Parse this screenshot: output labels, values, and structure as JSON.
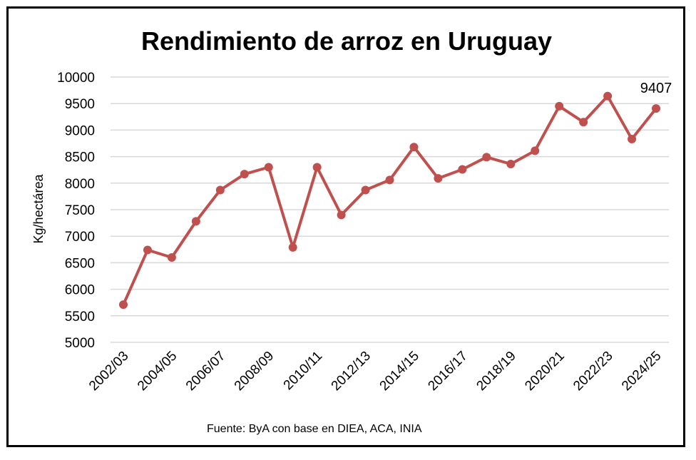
{
  "chart_data": {
    "type": "line",
    "title": "Rendimiento de arroz en Uruguay",
    "ylabel": "Kg/hectárea",
    "xlabel": "",
    "source": "Fuente: ByA con base en DIEA, ACA, INIA",
    "ylim": [
      5000,
      10000
    ],
    "yticks": [
      "5000",
      "5500",
      "6000",
      "6500",
      "7000",
      "7500",
      "8000",
      "8500",
      "9000",
      "9500",
      "10000"
    ],
    "x": [
      "2002/03",
      "2003/04",
      "2004/05",
      "2005/06",
      "2006/07",
      "2007/08",
      "2008/09",
      "2009/10",
      "2010/11",
      "2011/12",
      "2012/13",
      "2013/14",
      "2014/15",
      "2015/16",
      "2016/17",
      "2017/18",
      "2018/19",
      "2019/20",
      "2020/21",
      "2021/22",
      "2022/23",
      "2023/24",
      "2024/25"
    ],
    "xtick_labels": [
      "2002/03",
      "",
      "2004/05",
      "",
      "2006/07",
      "",
      "2008/09",
      "",
      "2010/11",
      "",
      "2012/13",
      "",
      "2014/15",
      "",
      "2016/17",
      "",
      "2018/19",
      "",
      "2020/21",
      "",
      "2022/23",
      "",
      "2024/25"
    ],
    "series": [
      {
        "values": [
          5710,
          6740,
          6600,
          7280,
          7870,
          8170,
          8300,
          6790,
          8300,
          7400,
          7870,
          8060,
          8680,
          8090,
          8260,
          8490,
          8360,
          8610,
          9450,
          9150,
          9640,
          8830,
          9407
        ]
      }
    ],
    "annotations": [
      {
        "label": "9407"
      }
    ],
    "grid": true,
    "legend": "none",
    "line_color": "#c0504d",
    "grid_color": "#d9d9d9"
  }
}
